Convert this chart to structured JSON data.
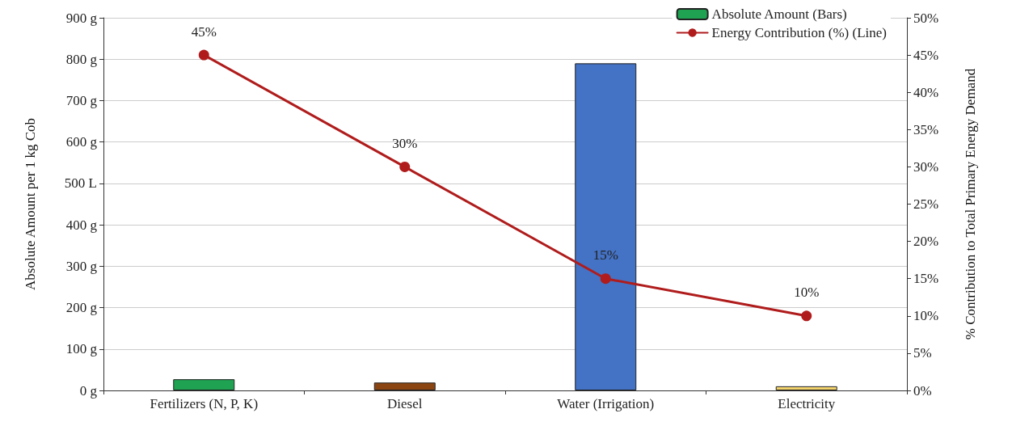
{
  "chart_data": {
    "type": "bar",
    "categories": [
      "Fertilizers (N, P, K)",
      "Diesel",
      "Water (Irrigation)",
      "Electricity"
    ],
    "ylabel": "Absolute Amount per 1 kg Cob",
    "y2label": "% Contribution to Total Primary Energy Demand",
    "series": [
      {
        "name": "Absolute Amount (Bars)",
        "color": "#1fa352",
        "colors": [
          "#1fa352",
          "#8b4513",
          "#4472c4",
          "#f2d36b"
        ],
        "values": [
          27,
          19,
          790,
          10
        ]
      },
      {
        "name": "Energy Contribution (%) (Line)",
        "type": "line",
        "axis": "y2",
        "color": "#b01c1c",
        "values": [
          45,
          30,
          15,
          10
        ],
        "value_labels": [
          "45%",
          "30%",
          "15%",
          "10%"
        ]
      }
    ],
    "ylim": [
      0,
      900
    ],
    "yticks": [
      {
        "value": 0,
        "label": "0 g"
      },
      {
        "value": 100,
        "label": "100 g"
      },
      {
        "value": 200,
        "label": "200 g"
      },
      {
        "value": 300,
        "label": "300 g"
      },
      {
        "value": 400,
        "label": "400 g"
      },
      {
        "value": 500,
        "label": "500 L"
      },
      {
        "value": 600,
        "label": "600 g"
      },
      {
        "value": 700,
        "label": "700 g"
      },
      {
        "value": 800,
        "label": "800 g"
      },
      {
        "value": 900,
        "label": "900 g"
      }
    ],
    "y2lim": [
      0,
      50
    ],
    "y2ticks": [
      {
        "value": 0,
        "label": "0%"
      },
      {
        "value": 5,
        "label": "5%"
      },
      {
        "value": 10,
        "label": "10%"
      },
      {
        "value": 15,
        "label": "15%"
      },
      {
        "value": 20,
        "label": "20%"
      },
      {
        "value": 25,
        "label": "25%"
      },
      {
        "value": 30,
        "label": "30%"
      },
      {
        "value": 35,
        "label": "35%"
      },
      {
        "value": 40,
        "label": "40%"
      },
      {
        "value": 45,
        "label": "45%"
      },
      {
        "value": 50,
        "label": "50%"
      }
    ],
    "grid": "y",
    "legend": "top right",
    "marker": "circle",
    "line_style": "solid"
  }
}
